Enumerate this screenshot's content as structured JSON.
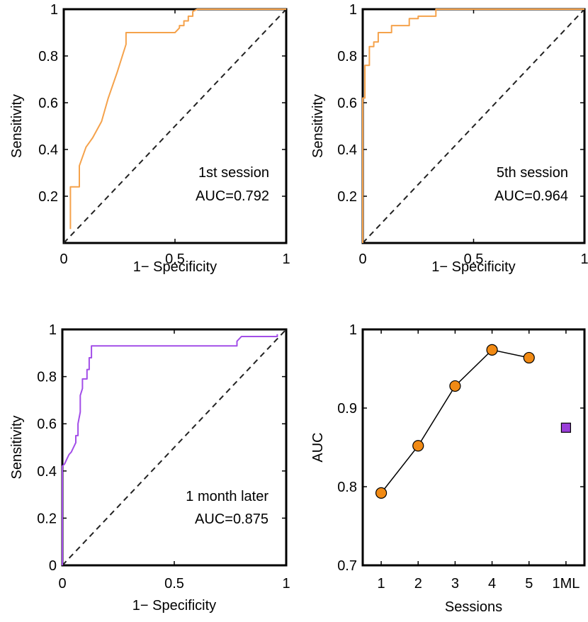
{
  "chart_data": [
    {
      "type": "line",
      "subtype": "roc",
      "xlabel": "1− Specificity",
      "ylabel": "Sensitivity",
      "xlim": [
        0,
        1
      ],
      "ylim": [
        0,
        1
      ],
      "xticks": [
        0,
        0.5,
        1
      ],
      "xtick_labels": [
        "0",
        "0.5",
        "1"
      ],
      "yticks": [
        0.2,
        0.4,
        0.6,
        0.8,
        1
      ],
      "ytick_labels": [
        "0.2",
        "0.4",
        "0.6",
        "0.8",
        "1"
      ],
      "annotation": [
        "1st session",
        "AUC=0.792"
      ],
      "line_color": "#f5a24b",
      "reference_line": {
        "x": [
          0,
          1
        ],
        "y": [
          0,
          1
        ],
        "style": "dashed"
      },
      "series": [
        {
          "x": [
            0.03,
            0.03,
            0.03,
            0.07,
            0.07,
            0.1,
            0.13,
            0.17,
            0.2,
            0.24,
            0.28,
            0.28,
            0.5,
            0.52,
            0.52,
            0.54,
            0.54,
            0.56,
            0.56,
            0.58,
            0.58,
            0.6,
            1.0
          ],
          "y": [
            0.06,
            0.15,
            0.24,
            0.24,
            0.33,
            0.41,
            0.45,
            0.52,
            0.62,
            0.73,
            0.85,
            0.9,
            0.9,
            0.92,
            0.93,
            0.93,
            0.95,
            0.95,
            0.97,
            0.97,
            0.99,
            1.0,
            1.0
          ]
        }
      ]
    },
    {
      "type": "line",
      "subtype": "roc",
      "xlabel": "1− Specificity",
      "ylabel": "Sensitivity",
      "xlim": [
        0,
        1
      ],
      "ylim": [
        0,
        1
      ],
      "xticks": [
        0,
        0.5,
        1
      ],
      "xtick_labels": [
        "0",
        "0.5",
        "1"
      ],
      "yticks": [
        0.2,
        0.4,
        0.6,
        0.8,
        1
      ],
      "ytick_labels": [
        "0.2",
        "0.4",
        "0.6",
        "0.8",
        "1"
      ],
      "annotation": [
        "5th session",
        "AUC=0.964"
      ],
      "line_color": "#f5a24b",
      "reference_line": {
        "x": [
          0,
          1
        ],
        "y": [
          0,
          1
        ],
        "style": "dashed"
      },
      "series": [
        {
          "x": [
            0,
            0,
            0.01,
            0.01,
            0.03,
            0.03,
            0.05,
            0.05,
            0.07,
            0.07,
            0.13,
            0.13,
            0.21,
            0.21,
            0.25,
            0.25,
            0.28,
            0.28,
            0.33,
            0.33,
            1.0
          ],
          "y": [
            0.0,
            0.62,
            0.62,
            0.76,
            0.76,
            0.84,
            0.84,
            0.86,
            0.86,
            0.9,
            0.9,
            0.93,
            0.93,
            0.96,
            0.96,
            0.97,
            0.97,
            0.97,
            0.97,
            1.0,
            1.0
          ]
        }
      ]
    },
    {
      "type": "line",
      "subtype": "roc",
      "xlabel": "1− Specificity",
      "ylabel": "Sensitivity",
      "xlim": [
        0,
        1
      ],
      "ylim": [
        0,
        1
      ],
      "xticks": [
        0,
        0.5,
        1
      ],
      "xtick_labels": [
        "0",
        "0.5",
        "1"
      ],
      "yticks": [
        0,
        0.2,
        0.4,
        0.6,
        0.8,
        1
      ],
      "ytick_labels": [
        "0",
        "0.2",
        "0.4",
        "0.6",
        "0.8",
        "1"
      ],
      "annotation": [
        "1 month later",
        "AUC=0.875"
      ],
      "line_color": "#a24ee8",
      "reference_line": {
        "x": [
          0,
          1
        ],
        "y": [
          0,
          1
        ],
        "style": "dashed"
      },
      "series": [
        {
          "x": [
            0,
            0,
            0.01,
            0.02,
            0.03,
            0.04,
            0.05,
            0.06,
            0.06,
            0.07,
            0.07,
            0.08,
            0.08,
            0.09,
            0.09,
            0.11,
            0.11,
            0.12,
            0.12,
            0.13,
            0.13,
            0.14,
            0.78,
            0.78,
            0.8,
            0.96,
            0.96
          ],
          "y": [
            0,
            0.42,
            0.43,
            0.45,
            0.47,
            0.48,
            0.5,
            0.52,
            0.55,
            0.55,
            0.6,
            0.65,
            0.72,
            0.75,
            0.79,
            0.79,
            0.83,
            0.83,
            0.88,
            0.88,
            0.93,
            0.93,
            0.93,
            0.95,
            0.97,
            0.97,
            0.98
          ]
        }
      ]
    },
    {
      "type": "scatter",
      "xlabel": "Sessions",
      "ylabel": "AUC",
      "categories": [
        "1",
        "2",
        "3",
        "4",
        "5",
        "1ML"
      ],
      "ylim": [
        0.7,
        1.0
      ],
      "yticks": [
        0.7,
        0.8,
        0.9,
        1
      ],
      "ytick_labels": [
        "0.7",
        "0.8",
        "0.9",
        "1"
      ],
      "series": [
        {
          "x": [
            1,
            2,
            3,
            4,
            5
          ],
          "values": [
            0.792,
            0.852,
            0.928,
            0.974,
            0.964
          ],
          "marker": "circle",
          "color": "#f18a14",
          "connected": true
        },
        {
          "x": [
            6
          ],
          "values": [
            0.875
          ],
          "marker": "square",
          "color": "#9a3ed9",
          "connected": false
        }
      ]
    }
  ]
}
